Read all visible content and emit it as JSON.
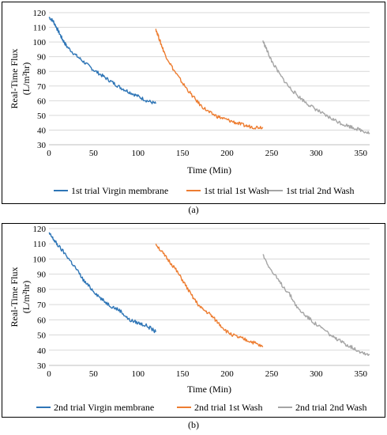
{
  "panels": [
    {
      "label_text": "(a)",
      "chart_data": {
        "type": "line",
        "title": "",
        "xlabel": "Time (Min)",
        "ylabel": "Real-Time Flux (L/m²hr)",
        "ylabel_lines": [
          "Real-Time Flux",
          "(L/m²hr)"
        ],
        "xlim": [
          0,
          360
        ],
        "ylim": [
          30,
          120
        ],
        "xticks": [
          0,
          50,
          100,
          150,
          200,
          250,
          300,
          350
        ],
        "yticks": [
          30,
          40,
          50,
          60,
          70,
          80,
          90,
          100,
          110,
          120
        ],
        "grid": "horizontal",
        "legend_position": "bottom",
        "series": [
          {
            "name": "1st trial Virgin membrane",
            "color": "#2E75B6",
            "x": [
              0,
              5,
              10,
              15,
              20,
              30,
              40,
              50,
              60,
              70,
              80,
              90,
              100,
              110,
              120
            ],
            "y": [
              117,
              114,
              108,
              102,
              97,
              91,
              86,
              81,
              77,
              73,
              69,
              66,
              63,
              60,
              58
            ]
          },
          {
            "name": "1st trial 1st Wash",
            "color": "#ED7D31",
            "x": [
              120,
              125,
              130,
              140,
              150,
              160,
              170,
              180,
              190,
              200,
              210,
              220,
              230,
              240
            ],
            "y": [
              109,
              100,
              92,
              81,
              72,
              64,
              57,
              52,
              49,
              47,
              45,
              43,
              42,
              42
            ]
          },
          {
            "name": "1st trial 2nd Wash",
            "color": "#A5A5A5",
            "x": [
              240,
              245,
              250,
              260,
              270,
              280,
              290,
              300,
              310,
              320,
              330,
              340,
              350,
              360
            ],
            "y": [
              101,
              94,
              87,
              77,
              69,
              63,
              58,
              54,
              50,
              47,
              44,
              42,
              40,
              38
            ]
          }
        ]
      }
    },
    {
      "label_text": "(b)",
      "chart_data": {
        "type": "line",
        "title": "",
        "xlabel": "Time (Min)",
        "ylabel": "Real-Time Flux (L/m²hr)",
        "ylabel_lines": [
          "Real-Time Flux",
          "(L/m²hr)"
        ],
        "xlim": [
          0,
          360
        ],
        "ylim": [
          30,
          120
        ],
        "xticks": [
          0,
          50,
          100,
          150,
          200,
          250,
          300,
          350
        ],
        "yticks": [
          30,
          40,
          50,
          60,
          70,
          80,
          90,
          100,
          110,
          120
        ],
        "grid": "horizontal",
        "legend_position": "bottom",
        "series": [
          {
            "name": "2nd trial Virgin membrane",
            "color": "#2E75B6",
            "x": [
              0,
              5,
              10,
              20,
              30,
              40,
              50,
              60,
              70,
              80,
              90,
              100,
              110,
              120
            ],
            "y": [
              117,
              113,
              109,
              102,
              94,
              85,
              79,
              73,
              69,
              66,
              60,
              58,
              56,
              52
            ]
          },
          {
            "name": "2nd trial 1st Wash",
            "color": "#ED7D31",
            "x": [
              120,
              130,
              140,
              150,
              160,
              170,
              180,
              190,
              200,
              210,
              220,
              230,
              240
            ],
            "y": [
              110,
              102,
              95,
              86,
              76,
              68,
              64,
              58,
              52,
              49,
              47,
              45,
              42
            ]
          },
          {
            "name": "2nd trial 2nd Wash",
            "color": "#A5A5A5",
            "x": [
              240,
              250,
              260,
              270,
              280,
              290,
              300,
              310,
              320,
              330,
              340,
              350,
              360
            ],
            "y": [
              103,
              92,
              84,
              77,
              67,
              62,
              57,
              53,
              48,
              45,
              42,
              39,
              37
            ]
          }
        ]
      }
    }
  ]
}
